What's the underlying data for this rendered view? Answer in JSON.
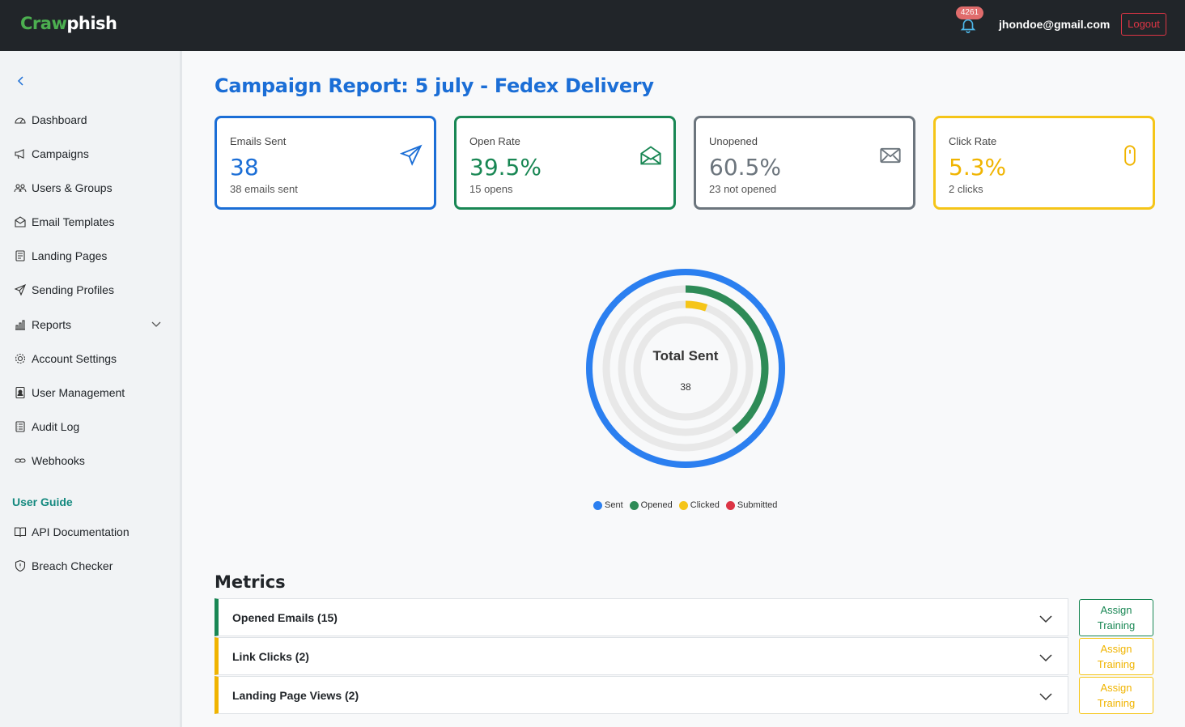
{
  "app": {
    "logo_part1": "Craw",
    "logo_part2": "phish",
    "notification_count": "4261",
    "user_email": "jhondoe@gmail.com",
    "logout_label": "Logout"
  },
  "sidebar": {
    "items": [
      {
        "label": "Dashboard",
        "icon": "speedometer-icon"
      },
      {
        "label": "Campaigns",
        "icon": "megaphone-icon"
      },
      {
        "label": "Users & Groups",
        "icon": "people-icon"
      },
      {
        "label": "Email Templates",
        "icon": "envelope-open-icon"
      },
      {
        "label": "Landing Pages",
        "icon": "file-text-icon"
      },
      {
        "label": "Sending Profiles",
        "icon": "send-icon"
      },
      {
        "label": "Reports",
        "icon": "bar-chart-icon"
      },
      {
        "label": "Account Settings",
        "icon": "gear-icon"
      },
      {
        "label": "User Management",
        "icon": "person-badge-icon"
      },
      {
        "label": "Audit Log",
        "icon": "journal-icon"
      },
      {
        "label": "Webhooks",
        "icon": "link-icon"
      }
    ],
    "guide_title": "User Guide",
    "guide_items": [
      {
        "label": "API Documentation",
        "icon": "book-icon"
      },
      {
        "label": "Breach Checker",
        "icon": "shield-icon"
      }
    ]
  },
  "page": {
    "title": "Campaign Report: 5 july - Fedex Delivery"
  },
  "cards": [
    {
      "label": "Emails Sent",
      "value": "38",
      "sub": "38 emails sent",
      "color": "#1b6ed6",
      "icon": "send-icon"
    },
    {
      "label": "Open Rate",
      "value": "39.5%",
      "sub": "15 opens",
      "color": "#198754",
      "icon": "envelope-open-icon"
    },
    {
      "label": "Unopened",
      "value": "60.5%",
      "sub": "23 not opened",
      "color": "#6c757d",
      "icon": "envelope-icon"
    },
    {
      "label": "Click Rate",
      "value": "5.3%",
      "sub": "2 clicks",
      "color": "#f0b400",
      "icon": "mouse-icon"
    }
  ],
  "chart_data": {
    "type": "radial-rings",
    "center_title": "Total Sent",
    "center_value": "38",
    "total": 38,
    "series": [
      {
        "name": "Sent",
        "value": 38,
        "color": "#2b7ff0"
      },
      {
        "name": "Opened",
        "value": 15,
        "color": "#2e8b57"
      },
      {
        "name": "Clicked",
        "value": 2,
        "color": "#f5c518"
      },
      {
        "name": "Submitted",
        "value": 0,
        "color": "#dc3545"
      }
    ]
  },
  "metrics": {
    "title": "Metrics",
    "rows": [
      {
        "label": "Opened Emails (15)",
        "color": "#198754",
        "assign_label": "Assign Training"
      },
      {
        "label": "Link Clicks (2)",
        "color": "#f0b400",
        "assign_label": "Assign Training"
      },
      {
        "label": "Landing Page Views (2)",
        "color": "#f0b400",
        "assign_label": "Assign Training"
      }
    ]
  }
}
